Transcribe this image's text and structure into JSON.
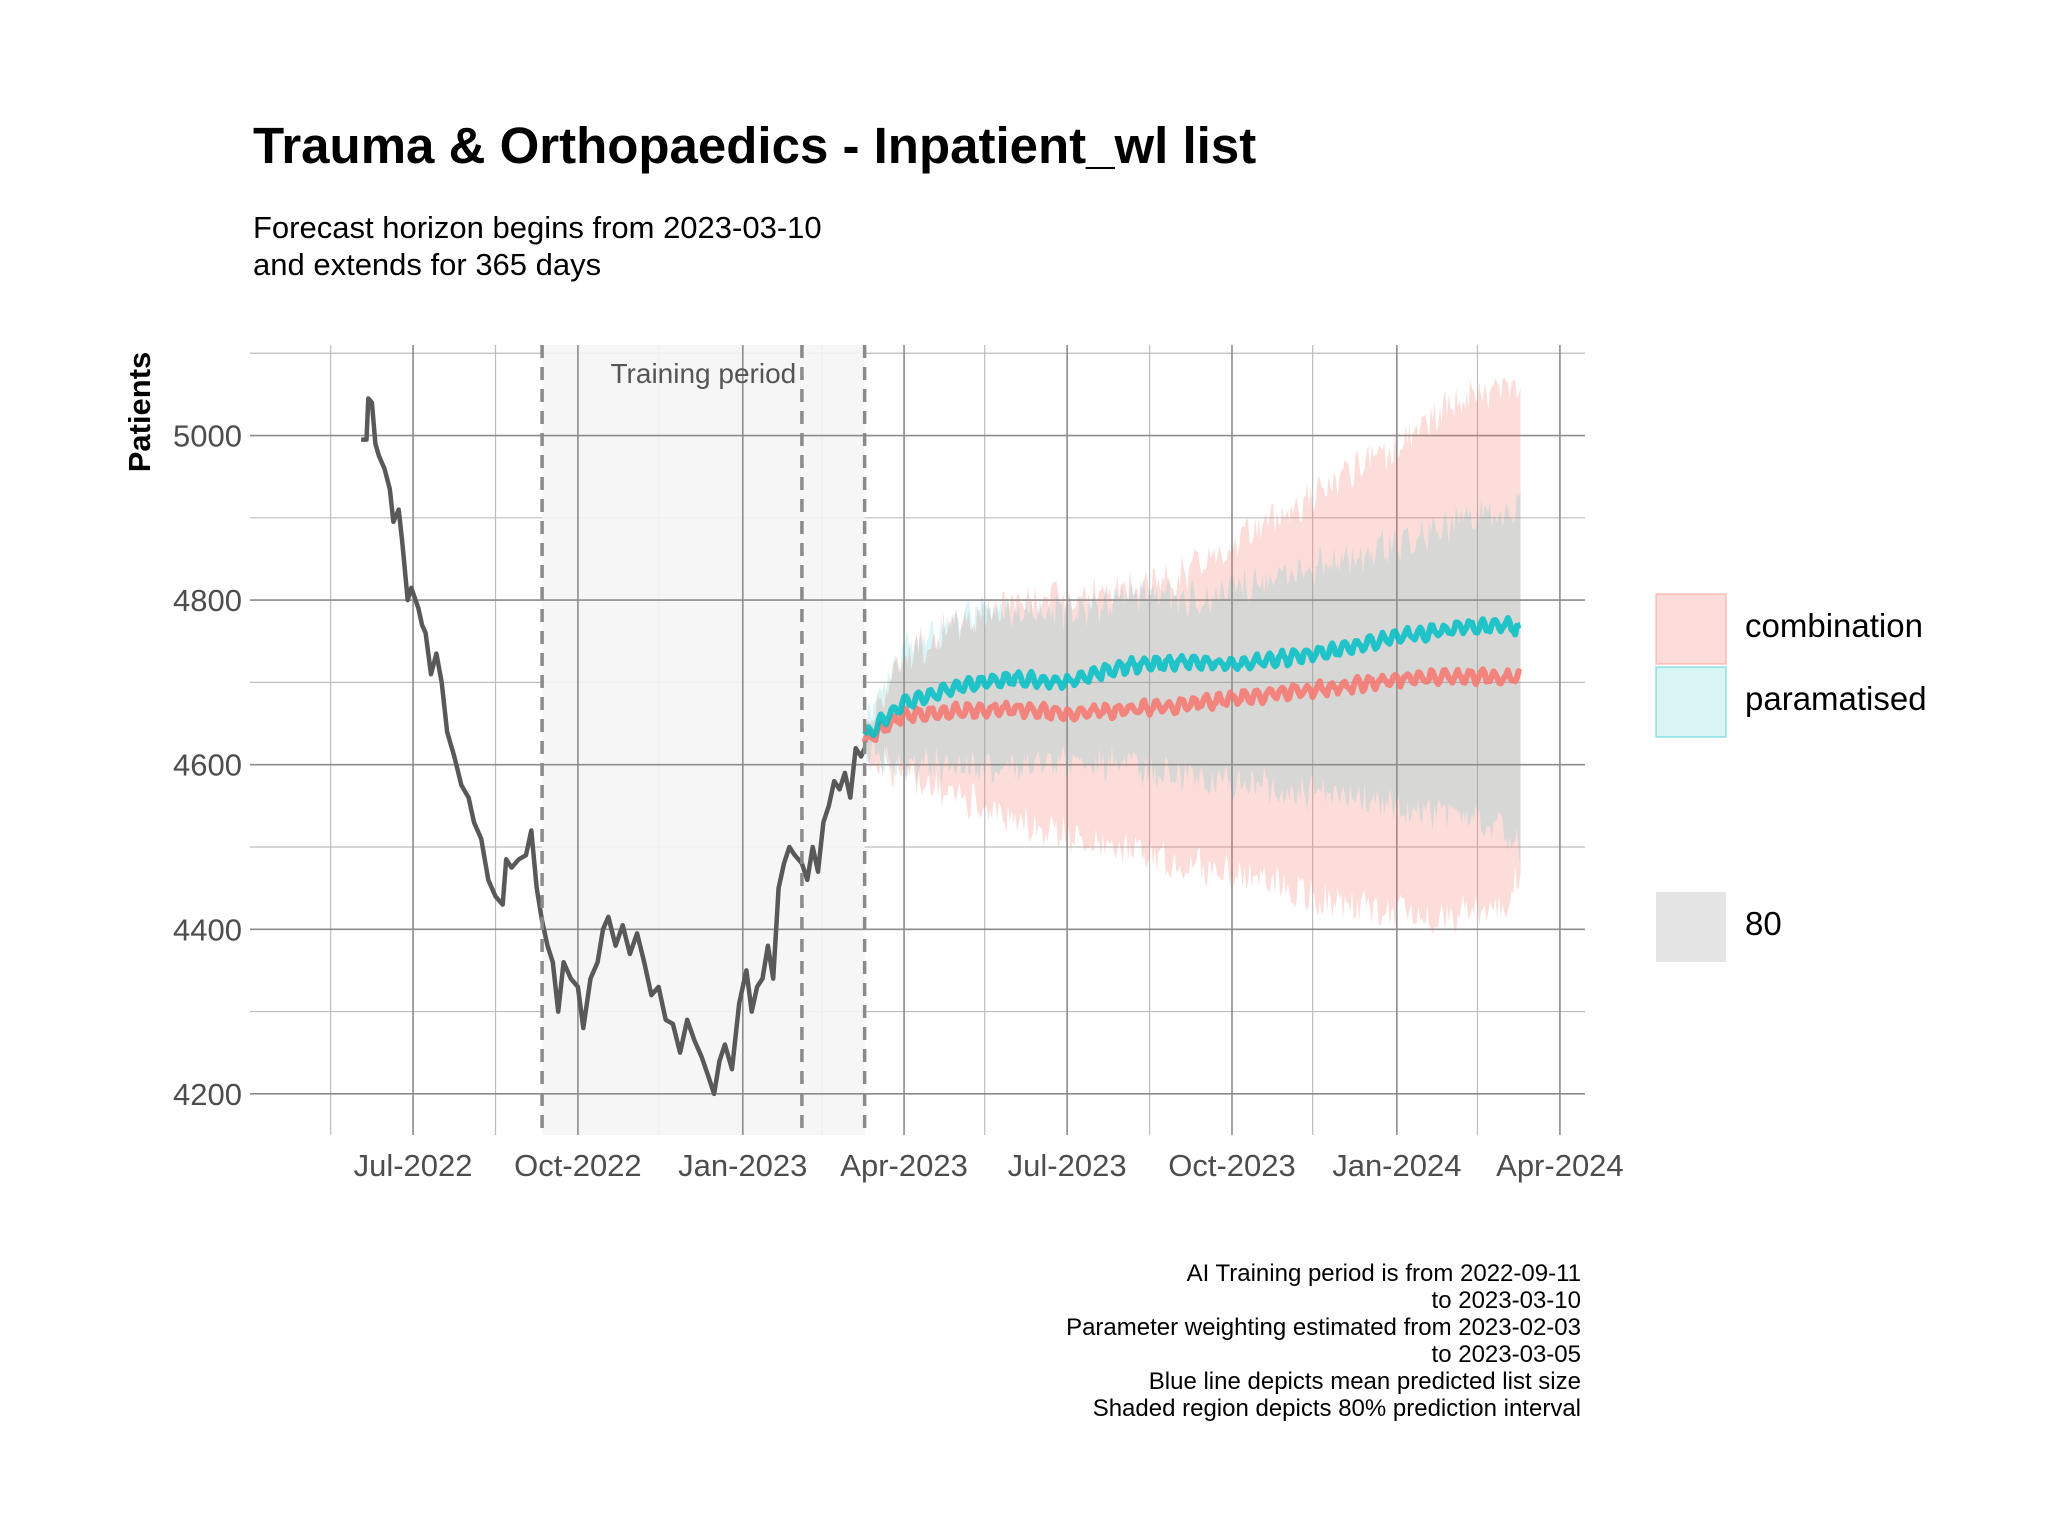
{
  "title": "Trauma & Orthopaedics - Inpatient_wl list",
  "subtitle_lines": [
    "Forecast horizon begins from 2023-03-10",
    "and extends for 365 days"
  ],
  "caption_lines": [
    "AI Training period is from 2022-09-11",
    "to 2023-03-10",
    "Parameter weighting estimated from 2023-02-03",
    "to 2023-03-05",
    "Blue line depicts mean predicted list size",
    "Shaded region depicts 80% prediction interval"
  ],
  "legend": {
    "fill_entries": [
      {
        "label": "combination",
        "color": "#F8766D"
      },
      {
        "label": "paramatised",
        "color": "#00BFC4"
      }
    ],
    "level_entries": [
      {
        "label": "80",
        "color": "#e5e5e5"
      }
    ],
    "position": "right"
  },
  "chart_data": {
    "type": "line",
    "title": "Trauma & Orthopaedics - Inpatient_wl list",
    "xlabel": "",
    "ylabel": "Patients",
    "x_type": "date",
    "xlim": [
      "2022-04-01",
      "2024-04-15"
    ],
    "ylim": [
      4150,
      5110
    ],
    "y_ticks": [
      4200,
      4400,
      4600,
      4800,
      5000
    ],
    "x_ticks": [
      {
        "date": "2022-07-01",
        "label": "Jul-2022"
      },
      {
        "date": "2022-10-01",
        "label": "Oct-2022"
      },
      {
        "date": "2023-01-01",
        "label": "Jan-2023"
      },
      {
        "date": "2023-04-01",
        "label": "Apr-2023"
      },
      {
        "date": "2023-07-01",
        "label": "Jul-2023"
      },
      {
        "date": "2023-10-01",
        "label": "Oct-2023"
      },
      {
        "date": "2024-01-01",
        "label": "Jan-2024"
      },
      {
        "date": "2024-04-01",
        "label": "Apr-2024"
      }
    ],
    "x_minor_ticks": [
      "2022-05-16",
      "2022-08-16",
      "2022-11-15",
      "2023-02-14",
      "2023-05-16",
      "2023-08-16",
      "2023-11-15",
      "2024-02-15"
    ],
    "grid": true,
    "training_period": {
      "label": "Training period",
      "start": "2022-09-11",
      "end": "2023-03-10"
    },
    "vlines": [
      "2022-09-11",
      "2023-02-03",
      "2023-03-10"
    ],
    "history": {
      "color": "#595959",
      "points": [
        [
          "2022-06-02",
          4995
        ],
        [
          "2022-06-05",
          4995
        ],
        [
          "2022-06-06",
          5045
        ],
        [
          "2022-06-08",
          5040
        ],
        [
          "2022-06-10",
          4990
        ],
        [
          "2022-06-12",
          4975
        ],
        [
          "2022-06-15",
          4960
        ],
        [
          "2022-06-18",
          4935
        ],
        [
          "2022-06-20",
          4895
        ],
        [
          "2022-06-23",
          4910
        ],
        [
          "2022-06-25",
          4870
        ],
        [
          "2022-06-28",
          4800
        ],
        [
          "2022-06-30",
          4815
        ],
        [
          "2022-07-04",
          4790
        ],
        [
          "2022-07-06",
          4770
        ],
        [
          "2022-07-08",
          4760
        ],
        [
          "2022-07-11",
          4710
        ],
        [
          "2022-07-14",
          4735
        ],
        [
          "2022-07-17",
          4700
        ],
        [
          "2022-07-20",
          4640
        ],
        [
          "2022-07-24",
          4610
        ],
        [
          "2022-07-28",
          4575
        ],
        [
          "2022-08-01",
          4560
        ],
        [
          "2022-08-04",
          4530
        ],
        [
          "2022-08-08",
          4510
        ],
        [
          "2022-08-12",
          4460
        ],
        [
          "2022-08-16",
          4440
        ],
        [
          "2022-08-20",
          4430
        ],
        [
          "2022-08-22",
          4485
        ],
        [
          "2022-08-25",
          4475
        ],
        [
          "2022-08-29",
          4485
        ],
        [
          "2022-09-02",
          4490
        ],
        [
          "2022-09-05",
          4520
        ],
        [
          "2022-09-08",
          4450
        ],
        [
          "2022-09-11",
          4410
        ],
        [
          "2022-09-14",
          4380
        ],
        [
          "2022-09-17",
          4360
        ],
        [
          "2022-09-20",
          4300
        ],
        [
          "2022-09-23",
          4360
        ],
        [
          "2022-09-27",
          4340
        ],
        [
          "2022-10-01",
          4330
        ],
        [
          "2022-10-04",
          4280
        ],
        [
          "2022-10-08",
          4340
        ],
        [
          "2022-10-12",
          4360
        ],
        [
          "2022-10-15",
          4400
        ],
        [
          "2022-10-18",
          4415
        ],
        [
          "2022-10-22",
          4380
        ],
        [
          "2022-10-26",
          4405
        ],
        [
          "2022-10-30",
          4370
        ],
        [
          "2022-11-03",
          4395
        ],
        [
          "2022-11-07",
          4360
        ],
        [
          "2022-11-11",
          4320
        ],
        [
          "2022-11-15",
          4330
        ],
        [
          "2022-11-19",
          4290
        ],
        [
          "2022-11-23",
          4285
        ],
        [
          "2022-11-27",
          4250
        ],
        [
          "2022-12-01",
          4290
        ],
        [
          "2022-12-05",
          4265
        ],
        [
          "2022-12-09",
          4245
        ],
        [
          "2022-12-13",
          4220
        ],
        [
          "2022-12-16",
          4200
        ],
        [
          "2022-12-19",
          4240
        ],
        [
          "2022-12-22",
          4260
        ],
        [
          "2022-12-26",
          4230
        ],
        [
          "2022-12-30",
          4310
        ],
        [
          "2023-01-03",
          4350
        ],
        [
          "2023-01-06",
          4300
        ],
        [
          "2023-01-09",
          4330
        ],
        [
          "2023-01-12",
          4340
        ],
        [
          "2023-01-15",
          4380
        ],
        [
          "2023-01-18",
          4340
        ],
        [
          "2023-01-21",
          4450
        ],
        [
          "2023-01-24",
          4480
        ],
        [
          "2023-01-27",
          4500
        ],
        [
          "2023-01-30",
          4490
        ],
        [
          "2023-02-03",
          4480
        ],
        [
          "2023-02-06",
          4460
        ],
        [
          "2023-02-09",
          4500
        ],
        [
          "2023-02-12",
          4470
        ],
        [
          "2023-02-15",
          4530
        ],
        [
          "2023-02-18",
          4550
        ],
        [
          "2023-02-21",
          4580
        ],
        [
          "2023-02-24",
          4570
        ],
        [
          "2023-02-27",
          4590
        ],
        [
          "2023-03-02",
          4560
        ],
        [
          "2023-03-05",
          4620
        ],
        [
          "2023-03-08",
          4610
        ],
        [
          "2023-03-10",
          4620
        ]
      ]
    },
    "series": [
      {
        "name": "combination",
        "color": "#F8766D",
        "x": [
          "2023-03-10",
          "2023-04-01",
          "2023-05-01",
          "2023-06-01",
          "2023-07-01",
          "2023-08-01",
          "2023-09-01",
          "2023-10-01",
          "2023-11-01",
          "2023-12-01",
          "2024-01-01",
          "2024-02-01",
          "2024-03-01",
          "2024-03-10"
        ],
        "mean": [
          4630,
          4660,
          4665,
          4668,
          4662,
          4667,
          4672,
          4680,
          4688,
          4694,
          4704,
          4708,
          4705,
          4708
        ],
        "lower": [
          4615,
          4585,
          4560,
          4535,
          4515,
          4495,
          4480,
          4470,
          4450,
          4430,
          4420,
          4415,
          4430,
          4470
        ],
        "upper": [
          4645,
          4735,
          4770,
          4800,
          4805,
          4810,
          4830,
          4870,
          4910,
          4945,
          4985,
          5040,
          5060,
          5050
        ]
      },
      {
        "name": "paramatised",
        "color": "#00BFC4",
        "x": [
          "2023-03-10",
          "2023-04-01",
          "2023-05-01",
          "2023-06-01",
          "2023-07-01",
          "2023-08-01",
          "2023-09-01",
          "2023-10-01",
          "2023-11-01",
          "2023-12-01",
          "2024-01-01",
          "2024-02-01",
          "2024-03-01",
          "2024-03-10"
        ],
        "mean": [
          4635,
          4675,
          4695,
          4705,
          4700,
          4720,
          4725,
          4722,
          4730,
          4740,
          4755,
          4765,
          4770,
          4765
        ],
        "lower": [
          4620,
          4600,
          4595,
          4600,
          4600,
          4600,
          4590,
          4580,
          4570,
          4560,
          4550,
          4540,
          4520,
          4500
        ],
        "upper": [
          4650,
          4740,
          4780,
          4790,
          4785,
          4800,
          4800,
          4810,
          4830,
          4850,
          4870,
          4890,
          4910,
          4920
        ]
      }
    ]
  }
}
